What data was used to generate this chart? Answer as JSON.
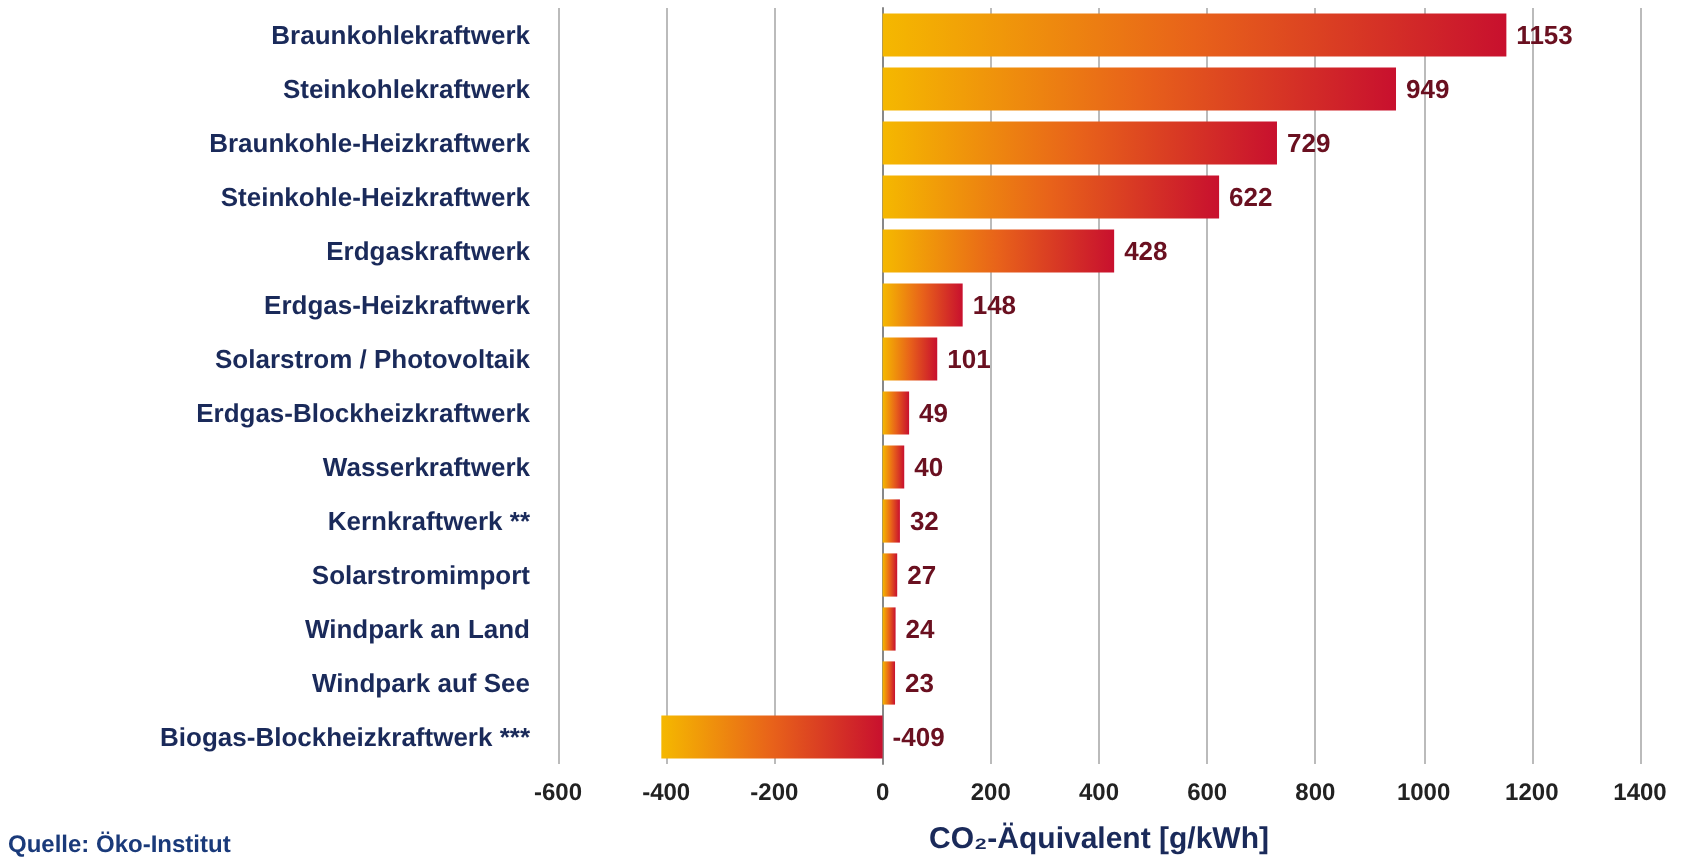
{
  "chart_data": {
    "type": "bar",
    "orientation": "horizontal",
    "xlabel": "CO₂-Äquivalent [g/kWh]",
    "categories": [
      "Braunkohlekraftwerk",
      "Steinkohlekraftwerk",
      "Braunkohle-Heizkraftwerk",
      "Steinkohle-Heizkraftwerk",
      "Erdgaskraftwerk",
      "Erdgas-Heizkraftwerk",
      "Solarstrom / Photovoltaik",
      "Erdgas-Blockheizkraftwerk",
      "Wasserkraftwerk",
      "Kernkraftwerk **",
      "Solarstromimport",
      "Windpark an Land",
      "Windpark auf See",
      "Biogas-Blockheizkraftwerk ***"
    ],
    "values": [
      1153,
      949,
      729,
      622,
      428,
      148,
      101,
      49,
      40,
      32,
      27,
      24,
      23,
      -409
    ],
    "color": "#c8102e",
    "data_labels": true,
    "grid": "x",
    "xlim": [
      -600,
      1400
    ],
    "xticks": [
      -600,
      -400,
      -200,
      0,
      200,
      400,
      600,
      800,
      1000,
      1200,
      1400
    ],
    "annotations": [
      "Quelle: Öko-Institut"
    ]
  }
}
